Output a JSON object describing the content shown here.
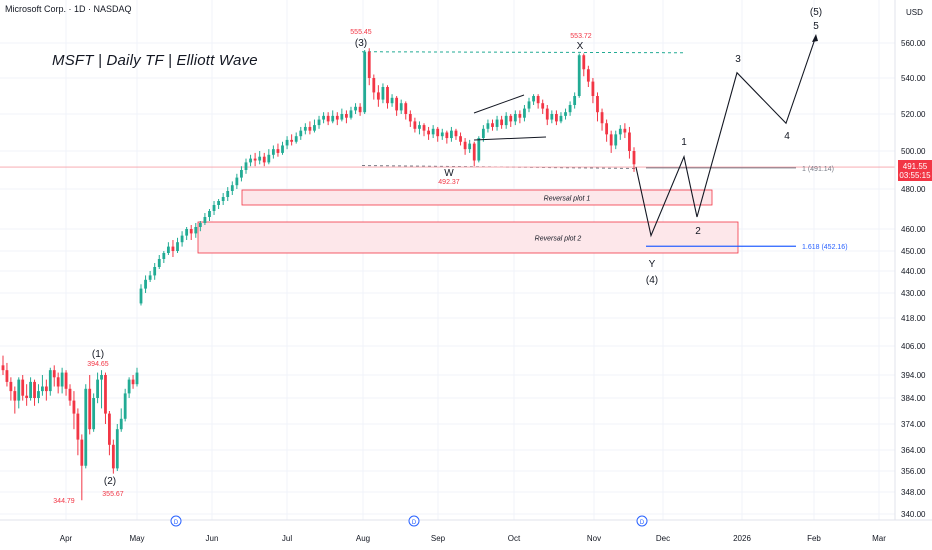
{
  "header": {
    "symbol_line": "Microsoft Corp. · 1D · NASDAQ",
    "currency": "USD"
  },
  "annotation_title": "MSFT | Daily TF | Elliott Wave",
  "price_badge": {
    "price": "491.55",
    "countdown": "03:55:15"
  },
  "colors": {
    "up": "#22ab94",
    "down": "#f23645",
    "pivot_label": "#f23645",
    "fib_1": "#787b86",
    "fib_1618": "#2962ff",
    "zone_fill": "#fde7ea",
    "zone_border": "#f23645",
    "dashed": "#22ab94"
  },
  "chart_data": {
    "type": "candlestick",
    "timeframe": "1D",
    "y_axis": {
      "ticks": [
        340.0,
        348.0,
        356.0,
        364.0,
        374.0,
        384.0,
        394.0,
        406.0,
        418.0,
        430.0,
        440.0,
        450.0,
        460.0,
        480.0,
        500.0,
        520.0,
        540.0,
        560.0
      ],
      "labels": [
        "340.00",
        "348.00",
        "356.00",
        "364.00",
        "374.00",
        "384.00",
        "394.00",
        "406.00",
        "418.00",
        "430.00",
        "440.00",
        "450.00",
        "460.00",
        "480.00",
        "500.00",
        "520.00",
        "540.00",
        "560.00"
      ]
    },
    "x_axis": {
      "labels": [
        "Apr",
        "May",
        "Jun",
        "Jul",
        "Aug",
        "Sep",
        "Oct",
        "Nov",
        "Dec",
        "2026",
        "Feb",
        "Mar"
      ]
    },
    "pivot_prices": [
      {
        "label": "344.79"
      },
      {
        "label": "394.65"
      },
      {
        "label": "355.67"
      },
      {
        "label": "555.45"
      },
      {
        "label": "492.37"
      },
      {
        "label": "553.72"
      }
    ],
    "wave_labels": [
      "(1)",
      "(2)",
      "(3)",
      "W",
      "X",
      "Y",
      "(4)",
      "1",
      "2",
      "3",
      "4",
      "5",
      "(5)"
    ],
    "fib_levels": [
      {
        "label": "1 (491.14)",
        "price": 491.14
      },
      {
        "label": "1.618 (452.16)",
        "price": 452.16
      }
    ],
    "zones": [
      {
        "label": "Reversal plot 1",
        "top": 479.5,
        "bottom": 472.0
      },
      {
        "label": "Reversal plot 2",
        "top": 463.5,
        "bottom": 449.0
      }
    ],
    "resistance_price": 555.0,
    "support_price": 492.37,
    "projection_path": [
      491.5,
      457,
      497,
      466,
      543,
      515,
      564
    ],
    "candles": [
      [
        398,
        396,
        402,
        394
      ],
      [
        396,
        391,
        399,
        389
      ],
      [
        391,
        387,
        393,
        383
      ],
      [
        387,
        383,
        389,
        378
      ],
      [
        383,
        392,
        393,
        380
      ],
      [
        392,
        385,
        394,
        383
      ],
      [
        385,
        384,
        390,
        381
      ],
      [
        384,
        391,
        393,
        383
      ],
      [
        391,
        384,
        392,
        381
      ],
      [
        384,
        387,
        390,
        382
      ],
      [
        387,
        389,
        394,
        385
      ],
      [
        389,
        387,
        392,
        383
      ],
      [
        387,
        396,
        397,
        385
      ],
      [
        396,
        393,
        398,
        389
      ],
      [
        393,
        389,
        395,
        386
      ],
      [
        389,
        395,
        397,
        386
      ],
      [
        395,
        388,
        396,
        385
      ],
      [
        388,
        383,
        390,
        381
      ],
      [
        383,
        378,
        387,
        372
      ],
      [
        378,
        368,
        380,
        362
      ],
      [
        368,
        358,
        370,
        345
      ],
      [
        358,
        388,
        390,
        357
      ],
      [
        388,
        372,
        394,
        370
      ],
      [
        372,
        384,
        386,
        371
      ],
      [
        384,
        392,
        395,
        382
      ],
      [
        392,
        394,
        396,
        380
      ],
      [
        394,
        378,
        395,
        374
      ],
      [
        378,
        366,
        379,
        362
      ],
      [
        366,
        357,
        368,
        355
      ],
      [
        357,
        372,
        374,
        356
      ],
      [
        372,
        376,
        380,
        371
      ],
      [
        376,
        386,
        388,
        375
      ],
      [
        386,
        392,
        393,
        384
      ],
      [
        392,
        390,
        394,
        388
      ],
      [
        390,
        395,
        397,
        389
      ],
      [
        425,
        432,
        434,
        424
      ],
      [
        432,
        436,
        438,
        430
      ],
      [
        436,
        438,
        440,
        435
      ],
      [
        438,
        442,
        444,
        436
      ],
      [
        442,
        446,
        448,
        441
      ],
      [
        446,
        449,
        450,
        444
      ],
      [
        449,
        452,
        454,
        448
      ],
      [
        452,
        450,
        455,
        447
      ],
      [
        450,
        454,
        456,
        449
      ],
      [
        454,
        457,
        459,
        452
      ],
      [
        457,
        460,
        461,
        455
      ],
      [
        460,
        458,
        462,
        455
      ],
      [
        458,
        461,
        463,
        456
      ],
      [
        461,
        463,
        464,
        459
      ],
      [
        463,
        466,
        468,
        462
      ],
      [
        466,
        469,
        470,
        464
      ],
      [
        469,
        472,
        474,
        467
      ],
      [
        472,
        474,
        475,
        470
      ],
      [
        474,
        476,
        478,
        472
      ],
      [
        476,
        479,
        481,
        474
      ],
      [
        479,
        482,
        484,
        477
      ],
      [
        482,
        486,
        488,
        480
      ],
      [
        486,
        490,
        492,
        484
      ],
      [
        490,
        494,
        496,
        488
      ],
      [
        494,
        496,
        498,
        492
      ],
      [
        496,
        495,
        499,
        492
      ],
      [
        495,
        497,
        500,
        493
      ],
      [
        497,
        494,
        499,
        492
      ],
      [
        494,
        498,
        501,
        493
      ],
      [
        498,
        501,
        503,
        496
      ],
      [
        501,
        499,
        504,
        497
      ],
      [
        499,
        503,
        505,
        498
      ],
      [
        503,
        506,
        508,
        501
      ],
      [
        506,
        505,
        509,
        503
      ],
      [
        505,
        508,
        510,
        504
      ],
      [
        508,
        511,
        513,
        506
      ],
      [
        511,
        513,
        515,
        509
      ],
      [
        513,
        511,
        516,
        509
      ],
      [
        511,
        514,
        517,
        510
      ],
      [
        514,
        517,
        519,
        512
      ],
      [
        517,
        519,
        521,
        515
      ],
      [
        519,
        516,
        521,
        514
      ],
      [
        516,
        519,
        522,
        515
      ],
      [
        519,
        517,
        521,
        514
      ],
      [
        517,
        520,
        523,
        516
      ],
      [
        520,
        518,
        522,
        515
      ],
      [
        518,
        522,
        524,
        517
      ],
      [
        522,
        524,
        526,
        520
      ],
      [
        524,
        521,
        526,
        519
      ],
      [
        521,
        555,
        556,
        520
      ],
      [
        555,
        540,
        557,
        536
      ],
      [
        540,
        532,
        542,
        528
      ],
      [
        532,
        528,
        536,
        524
      ],
      [
        528,
        535,
        537,
        526
      ],
      [
        535,
        526,
        536,
        523
      ],
      [
        526,
        529,
        531,
        524
      ],
      [
        529,
        522,
        530,
        519
      ],
      [
        522,
        526,
        528,
        520
      ],
      [
        526,
        520,
        527,
        517
      ],
      [
        520,
        516,
        522,
        513
      ],
      [
        516,
        512,
        518,
        510
      ],
      [
        512,
        514,
        516,
        509
      ],
      [
        514,
        511,
        515,
        508
      ],
      [
        511,
        509,
        513,
        506
      ],
      [
        509,
        512,
        514,
        507
      ],
      [
        512,
        508,
        513,
        505
      ],
      [
        508,
        510,
        512,
        506
      ],
      [
        510,
        507,
        511,
        504
      ],
      [
        507,
        511,
        513,
        505
      ],
      [
        511,
        508,
        512,
        506
      ],
      [
        508,
        505,
        510,
        503
      ],
      [
        505,
        501,
        507,
        498
      ],
      [
        501,
        504,
        506,
        499
      ],
      [
        504,
        495,
        505,
        492
      ],
      [
        495,
        507,
        508,
        494
      ],
      [
        507,
        512,
        514,
        505
      ],
      [
        512,
        515,
        517,
        510
      ],
      [
        515,
        513,
        517,
        511
      ],
      [
        513,
        517,
        519,
        511
      ],
      [
        517,
        514,
        519,
        512
      ],
      [
        514,
        519,
        521,
        512
      ],
      [
        519,
        516,
        520,
        513
      ],
      [
        516,
        520,
        522,
        514
      ],
      [
        520,
        518,
        522,
        515
      ],
      [
        518,
        523,
        525,
        516
      ],
      [
        523,
        527,
        529,
        521
      ],
      [
        527,
        530,
        531,
        525
      ],
      [
        530,
        526,
        531,
        523
      ],
      [
        526,
        523,
        528,
        520
      ],
      [
        523,
        517,
        525,
        514
      ],
      [
        517,
        520,
        522,
        515
      ],
      [
        520,
        516,
        522,
        514
      ],
      [
        516,
        519,
        521,
        515
      ],
      [
        519,
        521,
        523,
        517
      ],
      [
        521,
        525,
        527,
        519
      ],
      [
        525,
        530,
        532,
        523
      ],
      [
        530,
        553,
        554,
        529
      ],
      [
        553,
        545,
        554,
        541
      ],
      [
        545,
        538,
        547,
        535
      ],
      [
        538,
        530,
        540,
        526
      ],
      [
        530,
        521,
        532,
        516
      ],
      [
        521,
        515,
        523,
        511
      ],
      [
        515,
        509,
        517,
        505
      ],
      [
        509,
        503,
        511,
        499
      ],
      [
        503,
        509,
        511,
        501
      ],
      [
        509,
        512,
        514,
        506
      ],
      [
        512,
        510,
        515,
        507
      ],
      [
        510,
        500,
        513,
        496
      ],
      [
        500,
        493,
        502,
        489
      ]
    ]
  }
}
